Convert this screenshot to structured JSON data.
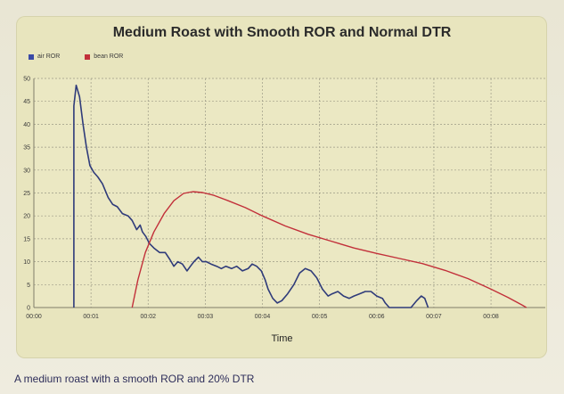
{
  "chart_data": {
    "type": "line",
    "title": "Medium Roast with Smooth ROR and Normal DTR",
    "xlabel": "Time",
    "ylabel": "",
    "x_tick_labels": [
      "00:00",
      "00:01",
      "00:02",
      "00:03",
      "00:04",
      "00:05",
      "00:06",
      "00:07",
      "00:08"
    ],
    "xlim": [
      0,
      8.95
    ],
    "ylim": [
      0,
      50
    ],
    "y_ticks": [
      0,
      5,
      10,
      15,
      20,
      25,
      30,
      35,
      40,
      45,
      50
    ],
    "grid": true,
    "legend_position": "top-left",
    "series": [
      {
        "name": "air ROR",
        "color": "#2f3b7a",
        "points": [
          [
            0.7,
            0
          ],
          [
            0.7,
            44
          ],
          [
            0.74,
            48.5
          ],
          [
            0.8,
            46
          ],
          [
            0.86,
            40
          ],
          [
            0.92,
            35
          ],
          [
            0.98,
            31
          ],
          [
            1.05,
            29.5
          ],
          [
            1.12,
            28.5
          ],
          [
            1.2,
            27
          ],
          [
            1.3,
            24
          ],
          [
            1.38,
            22.5
          ],
          [
            1.46,
            22
          ],
          [
            1.55,
            20.5
          ],
          [
            1.65,
            20
          ],
          [
            1.72,
            19
          ],
          [
            1.8,
            17
          ],
          [
            1.86,
            18
          ],
          [
            1.9,
            16.5
          ],
          [
            1.96,
            15.5
          ],
          [
            2.02,
            14
          ],
          [
            2.1,
            13
          ],
          [
            2.2,
            12
          ],
          [
            2.3,
            12
          ],
          [
            2.38,
            10.5
          ],
          [
            2.45,
            9
          ],
          [
            2.52,
            10
          ],
          [
            2.6,
            9.5
          ],
          [
            2.68,
            8
          ],
          [
            2.74,
            9
          ],
          [
            2.8,
            10
          ],
          [
            2.88,
            11
          ],
          [
            2.95,
            10
          ],
          [
            3.02,
            10
          ],
          [
            3.1,
            9.5
          ],
          [
            3.2,
            9
          ],
          [
            3.28,
            8.5
          ],
          [
            3.36,
            9
          ],
          [
            3.46,
            8.5
          ],
          [
            3.55,
            9
          ],
          [
            3.65,
            8
          ],
          [
            3.75,
            8.5
          ],
          [
            3.82,
            9.5
          ],
          [
            3.9,
            9
          ],
          [
            3.98,
            8
          ],
          [
            4.05,
            6
          ],
          [
            4.1,
            4
          ],
          [
            4.18,
            2
          ],
          [
            4.26,
            1
          ],
          [
            4.34,
            1.5
          ],
          [
            4.44,
            3
          ],
          [
            4.55,
            5
          ],
          [
            4.65,
            7.5
          ],
          [
            4.75,
            8.5
          ],
          [
            4.85,
            8
          ],
          [
            4.95,
            6.5
          ],
          [
            5.05,
            4
          ],
          [
            5.15,
            2.5
          ],
          [
            5.22,
            3
          ],
          [
            5.32,
            3.5
          ],
          [
            5.42,
            2.5
          ],
          [
            5.52,
            2
          ],
          [
            5.6,
            2.5
          ],
          [
            5.7,
            3
          ],
          [
            5.8,
            3.5
          ],
          [
            5.9,
            3.5
          ],
          [
            6.0,
            2.5
          ],
          [
            6.1,
            2
          ],
          [
            6.15,
            1
          ],
          [
            6.22,
            0
          ],
          [
            6.6,
            0
          ],
          [
            6.7,
            1.5
          ],
          [
            6.78,
            2.5
          ],
          [
            6.84,
            2
          ],
          [
            6.9,
            0
          ]
        ]
      },
      {
        "name": "bean ROR",
        "color": "#c2303a",
        "points": [
          [
            1.72,
            0
          ],
          [
            1.82,
            6
          ],
          [
            1.95,
            12
          ],
          [
            2.1,
            16.5
          ],
          [
            2.28,
            20.5
          ],
          [
            2.45,
            23.3
          ],
          [
            2.62,
            24.9
          ],
          [
            2.78,
            25.3
          ],
          [
            2.95,
            25.1
          ],
          [
            3.15,
            24.5
          ],
          [
            3.4,
            23.3
          ],
          [
            3.7,
            21.8
          ],
          [
            4.0,
            20
          ],
          [
            4.4,
            17.8
          ],
          [
            4.8,
            16
          ],
          [
            5.2,
            14.5
          ],
          [
            5.6,
            13
          ],
          [
            6.0,
            11.8
          ],
          [
            6.4,
            10.7
          ],
          [
            6.8,
            9.6
          ],
          [
            7.2,
            8.1
          ],
          [
            7.6,
            6.3
          ],
          [
            8.0,
            4
          ],
          [
            8.3,
            2.2
          ],
          [
            8.55,
            0.5
          ],
          [
            8.62,
            0
          ]
        ]
      }
    ]
  },
  "legend": {
    "items": [
      {
        "label": "air ROR",
        "color": "#3a4aa6"
      },
      {
        "label": "bean ROR",
        "color": "#c2303a"
      }
    ]
  },
  "caption": "A medium roast with a smooth ROR and 20% DTR"
}
